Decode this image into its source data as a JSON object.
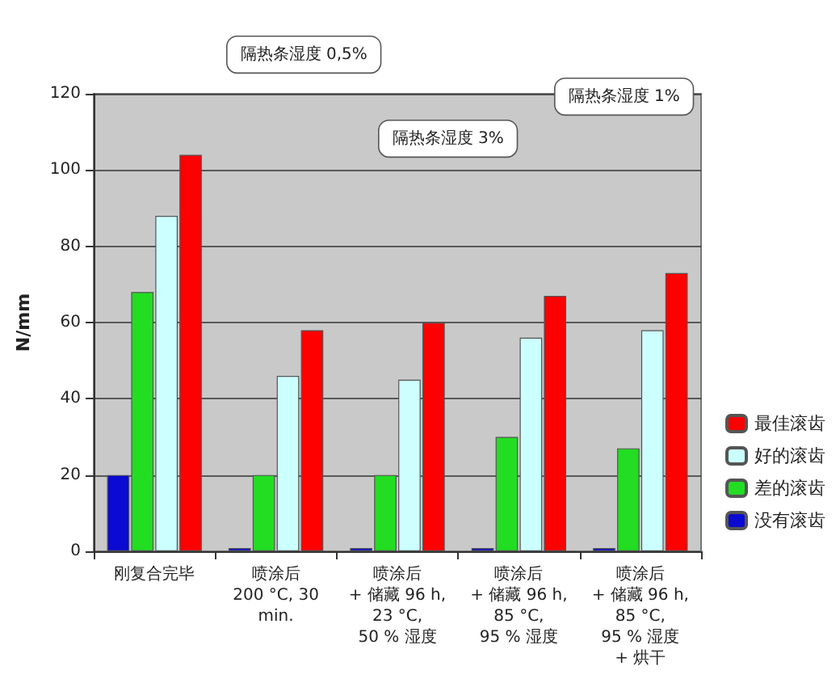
{
  "chart_data": {
    "type": "bar",
    "ylabel": "N/mm",
    "categories": [
      "刚复合完毕",
      "喷涂后\n200 °C, 30\nmin.",
      "喷涂后\n+ 储藏 96 h,\n23 °C,\n50 % 湿度",
      "喷涂后\n+ 储藏 96 h,\n85 °C,\n95 % 湿度",
      "喷涂后\n+ 储藏 96 h,\n85 °C,\n95 % 湿度\n+ 烘干"
    ],
    "series": [
      {
        "name": "没有滚齿",
        "color": "#0a0ad2",
        "values": [
          20,
          0,
          0,
          0,
          0
        ]
      },
      {
        "name": "差的滚齿",
        "color": "#22dd22",
        "values": [
          68,
          20,
          20,
          30,
          27
        ]
      },
      {
        "name": "好的滚齿",
        "color": "#ccffff",
        "values": [
          88,
          46,
          45,
          56,
          58
        ]
      },
      {
        "name": "最佳滚齿",
        "color": "#ff0000",
        "values": [
          104,
          58,
          60,
          67,
          73
        ]
      }
    ],
    "ylim": [
      0,
      120
    ],
    "yticks": [
      0,
      20,
      40,
      60,
      80,
      100,
      120
    ],
    "grid": "y",
    "legend": "bottom right",
    "annotations": [
      "隔热条湿度 0,5%",
      "隔热条湿度 3%",
      "隔热条湿度 1%"
    ]
  }
}
